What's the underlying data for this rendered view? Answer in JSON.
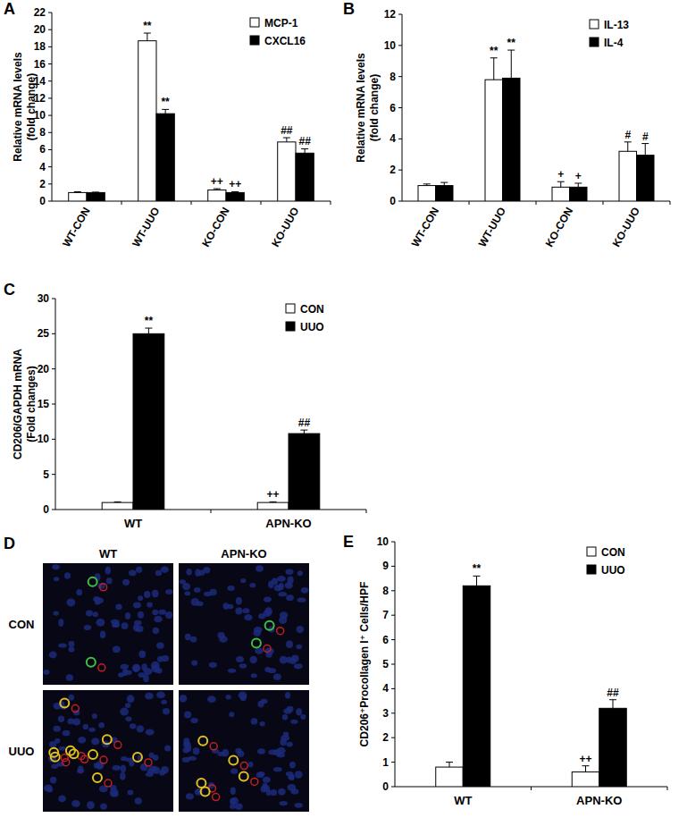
{
  "chart_data": [
    {
      "type": "bar",
      "title": "A",
      "y_label": [
        "Relative mRNA levels",
        "(fold change)"
      ],
      "categories": [
        "WT-CON",
        "WT-UUO",
        "KO-CON",
        "KO-UUO"
      ],
      "series": [
        {
          "name": "MCP-1",
          "color": "#ffffff",
          "values": [
            1,
            18.7,
            1.3,
            6.9
          ],
          "errors": [
            0.1,
            0.9,
            0.15,
            0.5
          ],
          "annotations": [
            null,
            "**",
            "++",
            "##"
          ]
        },
        {
          "name": "CXCL16",
          "color": "#000000",
          "values": [
            1,
            10.2,
            1,
            5.6
          ],
          "errors": [
            0.05,
            0.5,
            0.1,
            0.5
          ],
          "annotations": [
            null,
            "**",
            "++",
            "##"
          ]
        }
      ],
      "ylim": [
        0,
        22
      ],
      "yticks": [
        0,
        2,
        4,
        6,
        8,
        10,
        12,
        14,
        16,
        18,
        20,
        22
      ],
      "legend": "upper right"
    },
    {
      "type": "bar",
      "title": "B",
      "y_label": [
        "Relative mRNA levels",
        "(fold change)"
      ],
      "categories": [
        "WT-CON",
        "WT-UUO",
        "KO-CON",
        "KO-UUO"
      ],
      "series": [
        {
          "name": "IL-13",
          "color": "#ffffff",
          "values": [
            1,
            7.8,
            0.9,
            3.2
          ],
          "errors": [
            0.1,
            1.4,
            0.35,
            0.6
          ],
          "annotations": [
            null,
            "**",
            "+",
            "#"
          ]
        },
        {
          "name": "IL-4",
          "color": "#000000",
          "values": [
            1,
            7.9,
            0.9,
            2.95
          ],
          "errors": [
            0.2,
            1.8,
            0.25,
            0.75
          ],
          "annotations": [
            null,
            "**",
            "+",
            "#"
          ]
        }
      ],
      "ylim": [
        0,
        12
      ],
      "yticks": [
        0,
        2,
        4,
        6,
        8,
        10,
        12
      ],
      "legend": "upper right"
    },
    {
      "type": "bar",
      "title": "C",
      "y_label": [
        "CD206/GAPDH mRNA",
        "(Fold changes)"
      ],
      "categories": [
        "WT",
        "APN-KO"
      ],
      "series": [
        {
          "name": "CON",
          "color": "#ffffff",
          "values": [
            1,
            1
          ],
          "errors": [
            0.1,
            0.1
          ],
          "annotations": [
            null,
            "++"
          ]
        },
        {
          "name": "UUO",
          "color": "#000000",
          "values": [
            25,
            10.8
          ],
          "errors": [
            0.8,
            0.5
          ],
          "annotations": [
            "**",
            "##"
          ]
        }
      ],
      "ylim": [
        0,
        30
      ],
      "yticks": [
        0,
        5,
        10,
        15,
        20,
        25,
        30
      ],
      "legend": "upper right"
    },
    {
      "type": "bar",
      "title": "E",
      "y_label": [
        "CD206⁺Procollagen I⁺ Cells/HPF"
      ],
      "categories": [
        "WT",
        "APN-KO"
      ],
      "series": [
        {
          "name": "CON",
          "color": "#ffffff",
          "values": [
            0.8,
            0.6
          ],
          "errors": [
            0.2,
            0.25
          ],
          "annotations": [
            null,
            "++"
          ]
        },
        {
          "name": "UUO",
          "color": "#000000",
          "values": [
            8.2,
            3.2
          ],
          "errors": [
            0.4,
            0.35
          ],
          "annotations": [
            "**",
            "##"
          ]
        }
      ],
      "ylim": [
        0,
        10
      ],
      "yticks": [
        0,
        1,
        2,
        3,
        4,
        5,
        6,
        7,
        8,
        9,
        10
      ],
      "legend": "upper right"
    }
  ],
  "image_panel": {
    "label": "D",
    "columns": [
      "WT",
      "APN-KO"
    ],
    "rows": [
      "CON",
      "UUO"
    ]
  }
}
